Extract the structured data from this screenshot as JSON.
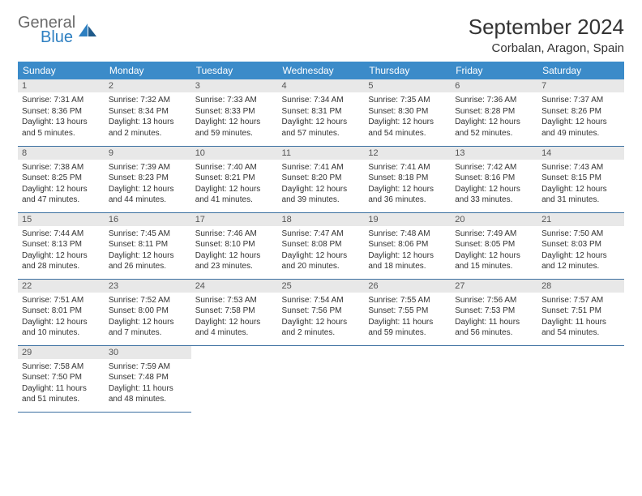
{
  "logo": {
    "word1": "General",
    "word2": "Blue"
  },
  "header": {
    "title": "September 2024",
    "location": "Corbalan, Aragon, Spain"
  },
  "colors": {
    "header_bg": "#3b8bc9",
    "header_text": "#ffffff",
    "row_border": "#3b6fa0",
    "daynum_bg": "#e8e8e8",
    "logo_gray": "#6b6b6b",
    "logo_blue": "#2d7fc1"
  },
  "weekdays": [
    "Sunday",
    "Monday",
    "Tuesday",
    "Wednesday",
    "Thursday",
    "Friday",
    "Saturday"
  ],
  "days": [
    {
      "n": "1",
      "sunrise": "Sunrise: 7:31 AM",
      "sunset": "Sunset: 8:36 PM",
      "daylight": "Daylight: 13 hours and 5 minutes."
    },
    {
      "n": "2",
      "sunrise": "Sunrise: 7:32 AM",
      "sunset": "Sunset: 8:34 PM",
      "daylight": "Daylight: 13 hours and 2 minutes."
    },
    {
      "n": "3",
      "sunrise": "Sunrise: 7:33 AM",
      "sunset": "Sunset: 8:33 PM",
      "daylight": "Daylight: 12 hours and 59 minutes."
    },
    {
      "n": "4",
      "sunrise": "Sunrise: 7:34 AM",
      "sunset": "Sunset: 8:31 PM",
      "daylight": "Daylight: 12 hours and 57 minutes."
    },
    {
      "n": "5",
      "sunrise": "Sunrise: 7:35 AM",
      "sunset": "Sunset: 8:30 PM",
      "daylight": "Daylight: 12 hours and 54 minutes."
    },
    {
      "n": "6",
      "sunrise": "Sunrise: 7:36 AM",
      "sunset": "Sunset: 8:28 PM",
      "daylight": "Daylight: 12 hours and 52 minutes."
    },
    {
      "n": "7",
      "sunrise": "Sunrise: 7:37 AM",
      "sunset": "Sunset: 8:26 PM",
      "daylight": "Daylight: 12 hours and 49 minutes."
    },
    {
      "n": "8",
      "sunrise": "Sunrise: 7:38 AM",
      "sunset": "Sunset: 8:25 PM",
      "daylight": "Daylight: 12 hours and 47 minutes."
    },
    {
      "n": "9",
      "sunrise": "Sunrise: 7:39 AM",
      "sunset": "Sunset: 8:23 PM",
      "daylight": "Daylight: 12 hours and 44 minutes."
    },
    {
      "n": "10",
      "sunrise": "Sunrise: 7:40 AM",
      "sunset": "Sunset: 8:21 PM",
      "daylight": "Daylight: 12 hours and 41 minutes."
    },
    {
      "n": "11",
      "sunrise": "Sunrise: 7:41 AM",
      "sunset": "Sunset: 8:20 PM",
      "daylight": "Daylight: 12 hours and 39 minutes."
    },
    {
      "n": "12",
      "sunrise": "Sunrise: 7:41 AM",
      "sunset": "Sunset: 8:18 PM",
      "daylight": "Daylight: 12 hours and 36 minutes."
    },
    {
      "n": "13",
      "sunrise": "Sunrise: 7:42 AM",
      "sunset": "Sunset: 8:16 PM",
      "daylight": "Daylight: 12 hours and 33 minutes."
    },
    {
      "n": "14",
      "sunrise": "Sunrise: 7:43 AM",
      "sunset": "Sunset: 8:15 PM",
      "daylight": "Daylight: 12 hours and 31 minutes."
    },
    {
      "n": "15",
      "sunrise": "Sunrise: 7:44 AM",
      "sunset": "Sunset: 8:13 PM",
      "daylight": "Daylight: 12 hours and 28 minutes."
    },
    {
      "n": "16",
      "sunrise": "Sunrise: 7:45 AM",
      "sunset": "Sunset: 8:11 PM",
      "daylight": "Daylight: 12 hours and 26 minutes."
    },
    {
      "n": "17",
      "sunrise": "Sunrise: 7:46 AM",
      "sunset": "Sunset: 8:10 PM",
      "daylight": "Daylight: 12 hours and 23 minutes."
    },
    {
      "n": "18",
      "sunrise": "Sunrise: 7:47 AM",
      "sunset": "Sunset: 8:08 PM",
      "daylight": "Daylight: 12 hours and 20 minutes."
    },
    {
      "n": "19",
      "sunrise": "Sunrise: 7:48 AM",
      "sunset": "Sunset: 8:06 PM",
      "daylight": "Daylight: 12 hours and 18 minutes."
    },
    {
      "n": "20",
      "sunrise": "Sunrise: 7:49 AM",
      "sunset": "Sunset: 8:05 PM",
      "daylight": "Daylight: 12 hours and 15 minutes."
    },
    {
      "n": "21",
      "sunrise": "Sunrise: 7:50 AM",
      "sunset": "Sunset: 8:03 PM",
      "daylight": "Daylight: 12 hours and 12 minutes."
    },
    {
      "n": "22",
      "sunrise": "Sunrise: 7:51 AM",
      "sunset": "Sunset: 8:01 PM",
      "daylight": "Daylight: 12 hours and 10 minutes."
    },
    {
      "n": "23",
      "sunrise": "Sunrise: 7:52 AM",
      "sunset": "Sunset: 8:00 PM",
      "daylight": "Daylight: 12 hours and 7 minutes."
    },
    {
      "n": "24",
      "sunrise": "Sunrise: 7:53 AM",
      "sunset": "Sunset: 7:58 PM",
      "daylight": "Daylight: 12 hours and 4 minutes."
    },
    {
      "n": "25",
      "sunrise": "Sunrise: 7:54 AM",
      "sunset": "Sunset: 7:56 PM",
      "daylight": "Daylight: 12 hours and 2 minutes."
    },
    {
      "n": "26",
      "sunrise": "Sunrise: 7:55 AM",
      "sunset": "Sunset: 7:55 PM",
      "daylight": "Daylight: 11 hours and 59 minutes."
    },
    {
      "n": "27",
      "sunrise": "Sunrise: 7:56 AM",
      "sunset": "Sunset: 7:53 PM",
      "daylight": "Daylight: 11 hours and 56 minutes."
    },
    {
      "n": "28",
      "sunrise": "Sunrise: 7:57 AM",
      "sunset": "Sunset: 7:51 PM",
      "daylight": "Daylight: 11 hours and 54 minutes."
    },
    {
      "n": "29",
      "sunrise": "Sunrise: 7:58 AM",
      "sunset": "Sunset: 7:50 PM",
      "daylight": "Daylight: 11 hours and 51 minutes."
    },
    {
      "n": "30",
      "sunrise": "Sunrise: 7:59 AM",
      "sunset": "Sunset: 7:48 PM",
      "daylight": "Daylight: 11 hours and 48 minutes."
    }
  ]
}
